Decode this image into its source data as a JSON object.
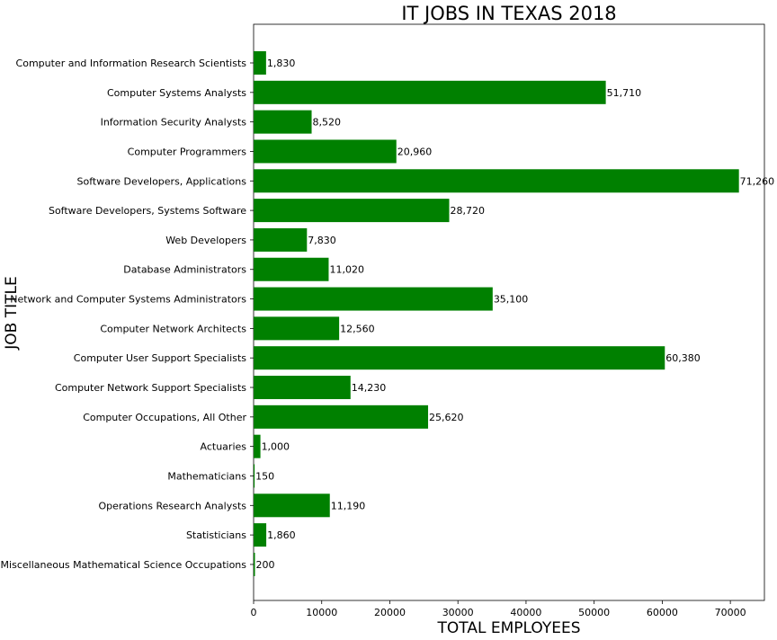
{
  "chart_data": {
    "type": "bar",
    "orientation": "horizontal",
    "title": "IT JOBS IN TEXAS 2018",
    "xlabel": "TOTAL EMPLOYEES",
    "ylabel": "JOB TITLE",
    "xlim": [
      0,
      75000
    ],
    "xticks": [
      "0",
      "10000",
      "20000",
      "30000",
      "40000",
      "50000",
      "60000",
      "70000"
    ],
    "bar_color": "#008000",
    "grid": false,
    "categories": [
      "Computer and Information Research Scientists",
      "Computer Systems Analysts",
      "Information Security Analysts",
      "Computer Programmers",
      "Software Developers, Applications",
      "Software Developers, Systems Software",
      "Web Developers",
      "Database Administrators",
      "Network and Computer Systems Administrators",
      "Computer Network Architects",
      "Computer User Support Specialists",
      "Computer Network Support Specialists",
      "Computer Occupations, All Other",
      "Actuaries",
      "Mathematicians",
      "Operations Research Analysts",
      "Statisticians",
      "Miscellaneous Mathematical Science Occupations"
    ],
    "values": [
      1830,
      51710,
      8520,
      20960,
      71260,
      28720,
      7830,
      11020,
      35100,
      12560,
      60380,
      14230,
      25620,
      1000,
      150,
      11190,
      1860,
      200
    ],
    "value_labels": [
      "1,830",
      "51,710",
      "8,520",
      "20,960",
      "71,260",
      "28,720",
      "7,830",
      "11,020",
      "35,100",
      "12,560",
      "60,380",
      "14,230",
      "25,620",
      "1,000",
      "150",
      "11,190",
      "1,860",
      "200"
    ]
  }
}
